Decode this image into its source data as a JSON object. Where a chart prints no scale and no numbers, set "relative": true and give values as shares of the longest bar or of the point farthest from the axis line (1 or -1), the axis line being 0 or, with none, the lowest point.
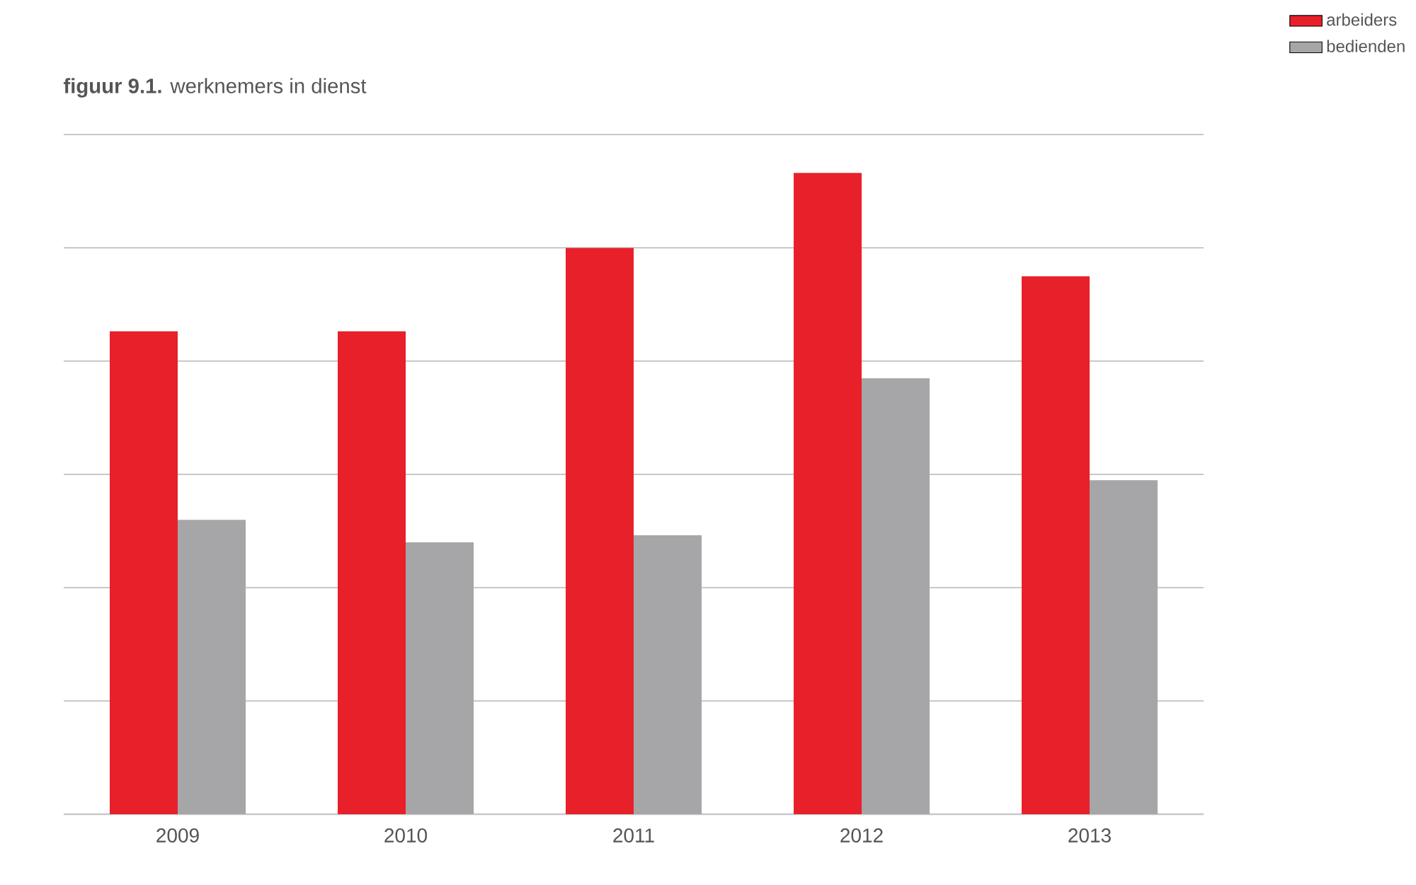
{
  "chart_data": {
    "type": "bar",
    "title": "**figuur 9.1.** werknemers in dienst",
    "categories": [
      "2009",
      "2010",
      "2011",
      "2012",
      "2013"
    ],
    "series": [
      {
        "name": "arbeiders",
        "color": "#e8202a",
        "values": [
          0.753,
          0.753,
          0.883,
          1,
          0.839
        ]
      },
      {
        "name": "bedienden",
        "color": "#a6a6a8",
        "values": [
          0.459,
          0.424,
          0.435,
          0.68,
          0.521
        ]
      }
    ],
    "relative": true,
    "grid": "y",
    "legend": "top right"
  }
}
